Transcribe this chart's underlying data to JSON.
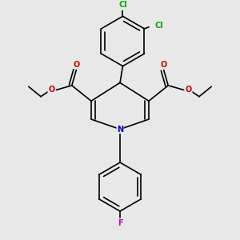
{
  "background_color": "#e8e8e8",
  "bond_color": "#000000",
  "bond_lw": 1.2,
  "atom_colors": {
    "N": "#0000cc",
    "O": "#cc0000",
    "Cl": "#00aa00",
    "F": "#cc00cc"
  },
  "font_size": 7.0
}
